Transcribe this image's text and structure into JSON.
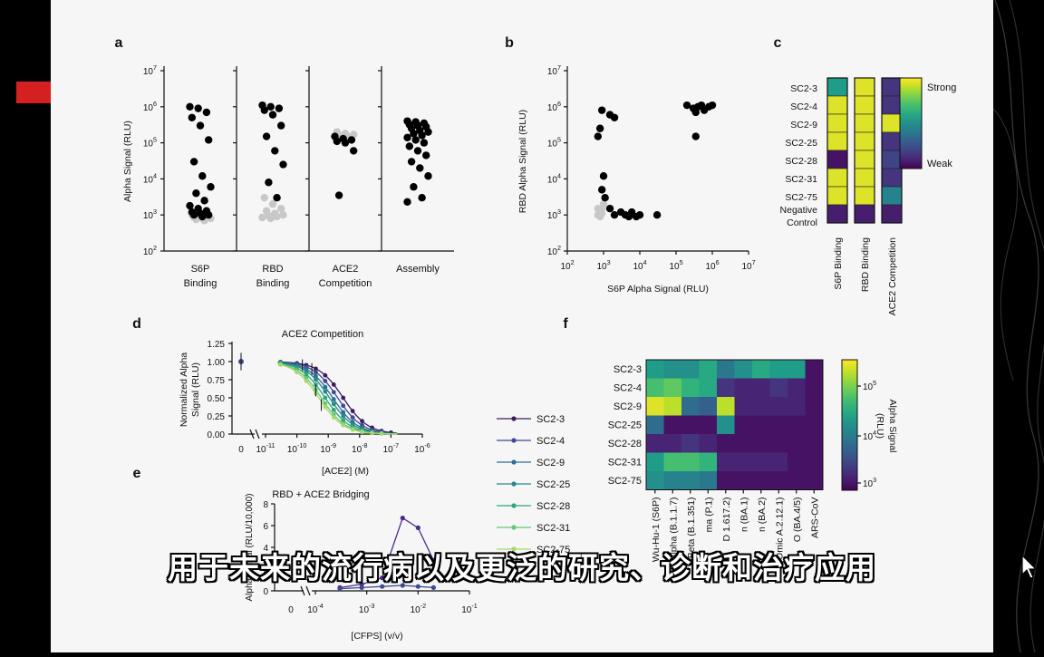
{
  "subtitle": "用于未来的流行病以及更泛的研究、诊断和治疗应用",
  "colors": {
    "slide_bg": "#f6f6f6",
    "black_dot": "#000000",
    "grey_dot": "#c8c8c8",
    "strong": "#f0e840",
    "weak": "#3b1a5a"
  },
  "chart_data": [
    {
      "panel": "a",
      "type": "scatter",
      "ylabel": "Alpha Signal (RLU)",
      "ylim": [
        100,
        10000000
      ],
      "yscale": "log",
      "y_ticks": [
        "10^2",
        "10^3",
        "10^4",
        "10^5",
        "10^6",
        "10^7"
      ],
      "categories": [
        {
          "label1": "S6P",
          "label2": "Binding",
          "black": [
            1000000,
            900000,
            700000,
            500000,
            300000,
            120000,
            30000,
            12000,
            6000,
            4000,
            2500,
            1800,
            1500,
            1300,
            1200,
            1100,
            1000,
            1000,
            900
          ],
          "grey": [
            1000,
            950,
            900,
            850,
            800,
            800,
            750,
            700
          ]
        },
        {
          "label1": "RBD",
          "label2": "Binding",
          "black": [
            1100000,
            1000000,
            900000,
            800000,
            600000,
            300000,
            150000,
            60000,
            25000,
            8000,
            3000
          ],
          "grey": [
            3000,
            2000,
            1500,
            1300,
            1100,
            1000,
            950,
            900,
            850,
            800
          ]
        },
        {
          "label1": "ACE2",
          "label2": "Competition",
          "black": [
            150000,
            130000,
            120000,
            110000,
            100000,
            60000,
            3500
          ],
          "grey": [
            200000,
            180000,
            170000,
            160000,
            150000
          ]
        },
        {
          "label1": "Assembly",
          "label2": "",
          "black": [
            400000,
            380000,
            350000,
            320000,
            300000,
            280000,
            250000,
            220000,
            200000,
            180000,
            160000,
            140000,
            120000,
            100000,
            80000,
            60000,
            45000,
            30000,
            20000,
            12000,
            6000,
            3000,
            2300
          ]
        }
      ]
    },
    {
      "panel": "b",
      "type": "scatter",
      "xlabel": "S6P Alpha Signal (RLU)",
      "ylabel": "RBD Alpha Signal (RLU)",
      "xlim": [
        100,
        10000000
      ],
      "ylim": [
        100,
        10000000
      ],
      "xscale": "log",
      "yscale": "log",
      "x_ticks": [
        "10^2",
        "10^3",
        "10^4",
        "10^5",
        "10^6",
        "10^7"
      ],
      "y_ticks": [
        "10^2",
        "10^3",
        "10^4",
        "10^5",
        "10^6",
        "10^7"
      ],
      "black": [
        [
          200000,
          1100000
        ],
        [
          300000,
          900000
        ],
        [
          350000,
          700000
        ],
        [
          400000,
          1000000
        ],
        [
          500000,
          1100000
        ],
        [
          600000,
          800000
        ],
        [
          800000,
          1000000
        ],
        [
          1000000,
          1100000
        ],
        [
          350000,
          150000
        ],
        [
          900,
          800000
        ],
        [
          1500,
          600000
        ],
        [
          2000,
          500000
        ],
        [
          700,
          150000
        ],
        [
          800,
          250000
        ],
        [
          1000,
          12000
        ],
        [
          900,
          5000
        ],
        [
          1100,
          3000
        ],
        [
          1500,
          1500
        ],
        [
          2000,
          1000
        ],
        [
          3000,
          1200
        ],
        [
          4000,
          1000
        ],
        [
          5000,
          900
        ],
        [
          6000,
          1200
        ],
        [
          8000,
          900
        ],
        [
          10000,
          1000
        ],
        [
          30000,
          1000
        ]
      ],
      "grey": [
        [
          700,
          1000
        ],
        [
          800,
          1200
        ],
        [
          900,
          1500
        ],
        [
          1000,
          2000
        ],
        [
          700,
          1500
        ],
        [
          800,
          900
        ],
        [
          900,
          1100
        ]
      ]
    },
    {
      "panel": "c",
      "type": "heatmap",
      "rows": [
        "SC2-3",
        "SC2-4",
        "SC2-9",
        "SC2-25",
        "SC2-28",
        "SC2-31",
        "SC2-75",
        "Negative Control"
      ],
      "columns": [
        "S6P Binding",
        "RBD Binding",
        "ACE2 Competition"
      ],
      "values": [
        [
          0.55,
          0.95,
          0.15
        ],
        [
          0.95,
          0.95,
          0.15
        ],
        [
          0.95,
          0.95,
          0.95
        ],
        [
          0.95,
          0.95,
          0.15
        ],
        [
          0.05,
          0.95,
          0.2
        ],
        [
          0.95,
          0.95,
          0.15
        ],
        [
          0.95,
          0.95,
          0.45
        ],
        [
          0.08,
          0.08,
          0.08
        ]
      ],
      "legend_high": "Strong",
      "legend_low": "Weak"
    },
    {
      "panel": "d",
      "type": "line",
      "title": "ACE2 Competition",
      "xlabel": "[ACE2] (M)",
      "ylabel": "Normalized Alpha Signal (RLU)",
      "xlim": [
        1e-11,
        1e-06
      ],
      "xscale": "log",
      "ylim": [
        0,
        1.25
      ],
      "y_ticks": [
        "0.00",
        "0.25",
        "0.50",
        "0.75",
        "1.00",
        "1.25"
      ],
      "x_ticks": [
        "0",
        "10^-11",
        "10^-10",
        "10^-9",
        "10^-8",
        "10^-7",
        "10^-6"
      ],
      "x": [
        3e-11,
        1e-10,
        2e-10,
        4e-10,
        8e-10,
        1.5e-09,
        3e-09,
        6e-09,
        1.2e-08,
        2.5e-08,
        5e-08,
        1e-07
      ],
      "series": [
        {
          "name": "SC2-3",
          "color": "#3f1c5e",
          "ic50": 3e-09
        },
        {
          "name": "SC2-4",
          "color": "#3d4a92",
          "ic50": 2e-09
        },
        {
          "name": "SC2-9",
          "color": "#2e6e96",
          "ic50": 1.4e-09
        },
        {
          "name": "SC2-25",
          "color": "#23898a",
          "ic50": 1.1e-09
        },
        {
          "name": "SC2-28",
          "color": "#2ea877",
          "ic50": 8e-10
        },
        {
          "name": "SC2-31",
          "color": "#5fc878",
          "ic50": 6e-10
        },
        {
          "name": "SC2-75",
          "color": "#a6d86a",
          "ic50": 5e-10
        }
      ]
    },
    {
      "panel": "e",
      "type": "line",
      "title": "RBD + ACE2 Bridging",
      "xlabel": "[CFPS] (v/v)",
      "ylabel": "Alpha Signal (RLU/10,000)",
      "xlim": [
        0.0001,
        0.1
      ],
      "xscale": "log",
      "ylim": [
        0,
        8
      ],
      "y_ticks": [
        "0",
        "2",
        "4",
        "6",
        "8"
      ],
      "x_ticks": [
        "0",
        "10^-4",
        "10^-3",
        "10^-2",
        "10^-1"
      ],
      "x": [
        0.0003,
        0.0008,
        0.002,
        0.005,
        0.01,
        0.02
      ],
      "series": [
        {
          "name": "SC2-3",
          "color": "#4a2a8a",
          "values": [
            0.3,
            0.6,
            1.2,
            6.7,
            5.8,
            2.8
          ]
        },
        {
          "name": "SC2-4",
          "color": "#3d4a92",
          "values": [
            0.2,
            0.3,
            0.4,
            0.5,
            0.4,
            0.3
          ]
        }
      ]
    },
    {
      "panel": "f",
      "type": "heatmap",
      "rows": [
        "SC2-3",
        "SC2-4",
        "SC2-9",
        "SC2-25",
        "SC2-28",
        "SC2-31",
        "SC2-75"
      ],
      "columns": [
        "Wu-Hu-1 (S6P)",
        "Alpha (B.1.1.7)",
        "Beta (B.1.351)",
        "Gamma (P.1)",
        "Delta (B.1.617.2)",
        "Omicron (BA.1)",
        "Omicron (BA.2)",
        "Omicron (BA.2.12.1)",
        "Omicron (BA.4/5)",
        "SARS-CoV"
      ],
      "column_labels_visible": [
        "Wu-Hu-1 (S6P)",
        "Alpha (B.1.1.7)",
        "Beta (B.1.351)",
        "ma (P.1)",
        "D 1.617.2)",
        "n (BA.1)",
        "n (BA.2)",
        "Omic A.2.12.1)",
        "O (BA.4/5)",
        "ARS-CoV"
      ],
      "values": [
        [
          0.55,
          0.5,
          0.5,
          0.6,
          0.4,
          0.5,
          0.6,
          0.55,
          0.55,
          0.05
        ],
        [
          0.7,
          0.75,
          0.65,
          0.6,
          0.15,
          0.1,
          0.1,
          0.15,
          0.1,
          0.05
        ],
        [
          0.95,
          0.9,
          0.35,
          0.3,
          0.9,
          0.1,
          0.1,
          0.1,
          0.1,
          0.05
        ],
        [
          0.35,
          0.05,
          0.05,
          0.05,
          0.5,
          0.05,
          0.05,
          0.05,
          0.05,
          0.05
        ],
        [
          0.1,
          0.1,
          0.15,
          0.1,
          0.05,
          0.05,
          0.05,
          0.05,
          0.05,
          0.05
        ],
        [
          0.55,
          0.7,
          0.7,
          0.65,
          0.1,
          0.1,
          0.1,
          0.1,
          0.05,
          0.05
        ],
        [
          0.5,
          0.45,
          0.45,
          0.4,
          0.05,
          0.05,
          0.05,
          0.05,
          0.05,
          0.05
        ]
      ],
      "colorbar_label": "Alpha Signal (RLU)",
      "colorbar_ticks": [
        "10^5",
        "10^4",
        "10^3"
      ]
    }
  ]
}
